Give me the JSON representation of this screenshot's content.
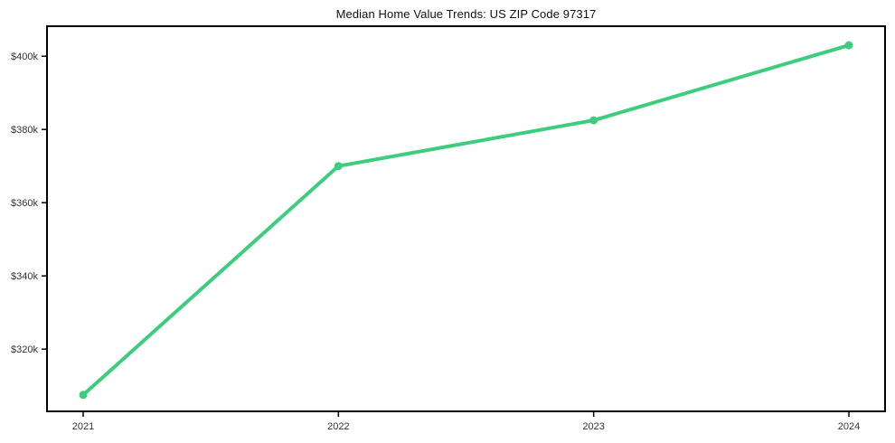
{
  "chart_data": {
    "type": "line",
    "title": "Median Home Value Trends: US ZIP Code 97317",
    "x": [
      "2021",
      "2022",
      "2023",
      "2024"
    ],
    "series": [
      {
        "name": "Median Home Value",
        "values": [
          307500,
          370000,
          382500,
          403000
        ]
      }
    ],
    "xlabel": "",
    "ylabel": "",
    "ylim": [
      303000,
      408200
    ],
    "yticks": [
      320000,
      340000,
      360000,
      380000,
      400000
    ],
    "ytick_labels": [
      "$320k",
      "$340k",
      "$360k",
      "$380k",
      "$400k"
    ],
    "xtick_labels": [
      "2021",
      "2022",
      "2023",
      "2024"
    ],
    "grid": false,
    "legend": "none",
    "line_color": "#3ecd7e",
    "marker": "circle",
    "spine_color": "#000000",
    "tick_color": "#000000",
    "tick_label_color": "#333333",
    "title_color": "#111111",
    "background_color": "#ffffff"
  }
}
